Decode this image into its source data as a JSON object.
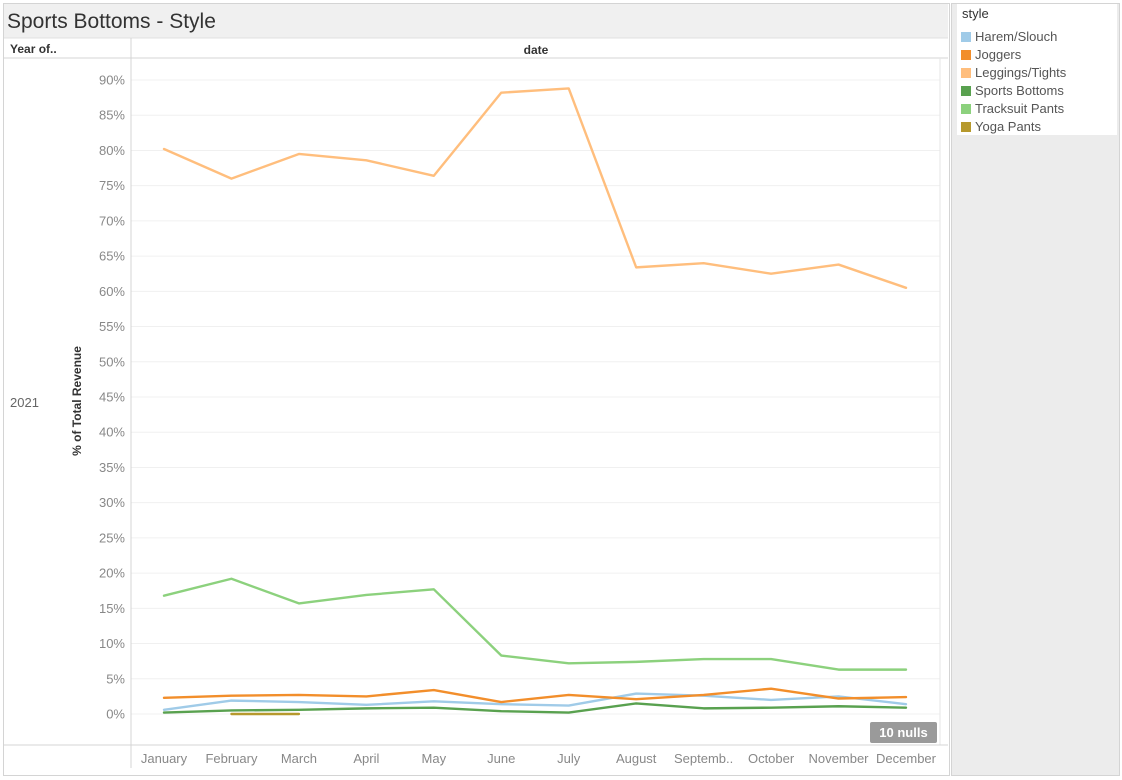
{
  "title": "Sports Bottoms - Style",
  "nulls_badge": "10 nulls",
  "legend": {
    "title": "style",
    "items": [
      {
        "label": "Harem/Slouch",
        "color": "#a0cbe8"
      },
      {
        "label": "Joggers",
        "color": "#f28e2b"
      },
      {
        "label": "Leggings/Tights",
        "color": "#ffbe7d"
      },
      {
        "label": "Sports Bottoms",
        "color": "#59a14f"
      },
      {
        "label": "Tracksuit Pants",
        "color": "#8cd17d"
      },
      {
        "label": "Yoga Pants",
        "color": "#b6992d"
      }
    ]
  },
  "chart_data": {
    "type": "line",
    "row_header": "Year of..",
    "row_value": "2021",
    "column_header": "date",
    "xlabel": "",
    "ylabel": "% of Total Revenue",
    "ylim": [
      0,
      90
    ],
    "yticks": [
      0,
      5,
      10,
      15,
      20,
      25,
      30,
      35,
      40,
      45,
      50,
      55,
      60,
      65,
      70,
      75,
      80,
      85,
      90
    ],
    "tick_suffix": "%",
    "categories": [
      "January",
      "February",
      "March",
      "April",
      "May",
      "June",
      "July",
      "August",
      "Septemb..",
      "October",
      "November",
      "December"
    ],
    "grid": true,
    "legend_position": "right",
    "series": [
      {
        "name": "Harem/Slouch",
        "color": "#a0cbe8",
        "values": [
          0.6,
          1.9,
          1.7,
          1.3,
          1.8,
          1.4,
          1.2,
          2.9,
          2.6,
          2.0,
          2.5,
          1.4
        ]
      },
      {
        "name": "Joggers",
        "color": "#f28e2b",
        "values": [
          2.3,
          2.6,
          2.7,
          2.5,
          3.4,
          1.7,
          2.7,
          2.1,
          2.7,
          3.6,
          2.2,
          2.4
        ]
      },
      {
        "name": "Leggings/Tights",
        "color": "#ffbe7d",
        "values": [
          80.2,
          76.0,
          79.5,
          78.6,
          76.4,
          88.2,
          88.8,
          63.4,
          64.0,
          62.5,
          63.8,
          60.5
        ]
      },
      {
        "name": "Sports Bottoms",
        "color": "#59a14f",
        "values": [
          0.2,
          0.5,
          0.6,
          0.8,
          0.9,
          0.4,
          0.2,
          1.5,
          0.8,
          0.9,
          1.1,
          0.9
        ]
      },
      {
        "name": "Tracksuit Pants",
        "color": "#8cd17d",
        "values": [
          16.8,
          19.2,
          15.7,
          16.9,
          17.7,
          8.3,
          7.2,
          7.4,
          7.8,
          7.8,
          6.3,
          6.3
        ]
      },
      {
        "name": "Yoga Pants",
        "color": "#b6992d",
        "values": [
          null,
          0.0,
          0.0,
          null,
          null,
          null,
          null,
          null,
          null,
          null,
          null,
          null
        ]
      }
    ]
  }
}
